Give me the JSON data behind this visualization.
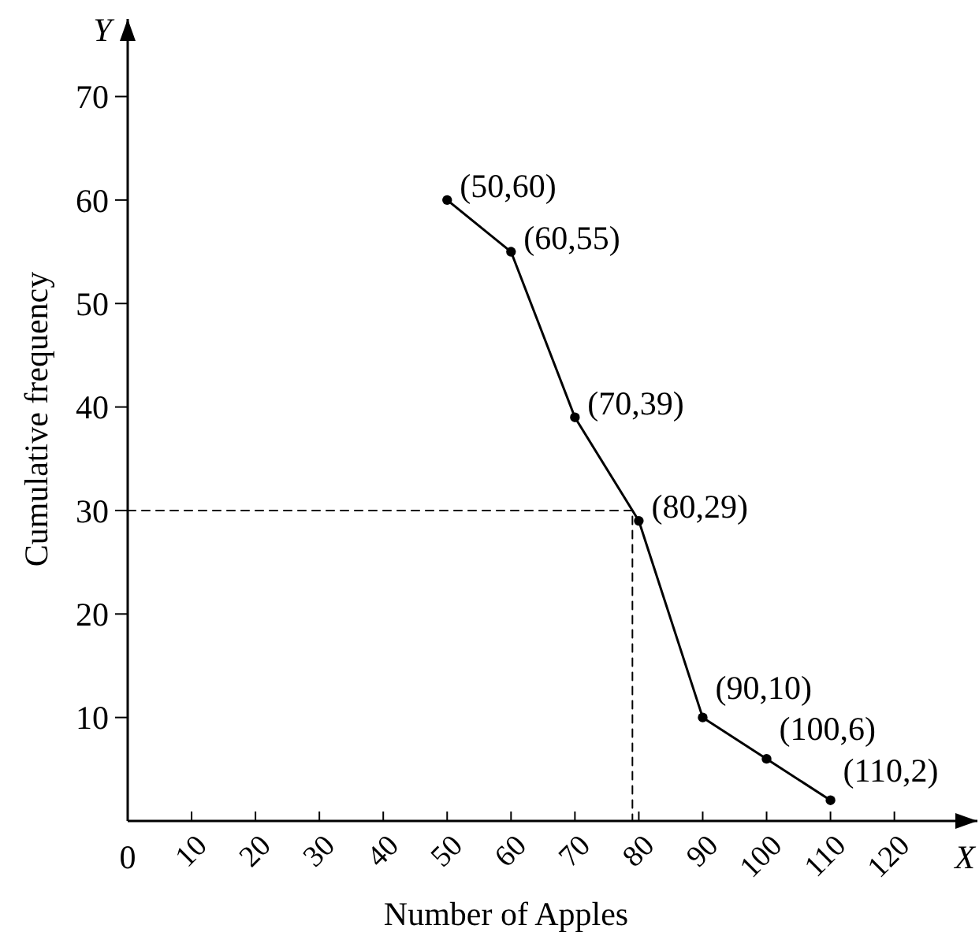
{
  "chart_data": {
    "type": "line",
    "xlabel": "Number of Apples",
    "ylabel": "Cumulative frequency",
    "annotations": [
      "X",
      "Y",
      "0",
      {
        "text": "(50,60)",
        "x": 50,
        "y": 60
      },
      {
        "text": "(60,55)",
        "x": 60,
        "y": 55
      },
      {
        "text": "(70,39)",
        "x": 70,
        "y": 39
      },
      {
        "text": "(80,29)",
        "x": 80,
        "y": 29
      },
      {
        "text": "(90,10)",
        "x": 90,
        "y": 10
      },
      {
        "text": "(100,6)",
        "x": 100,
        "y": 6
      },
      {
        "text": "(110,2)",
        "x": 110,
        "y": 2
      }
    ],
    "xlim": [
      0,
      133
    ],
    "ylim": [
      0,
      77.5
    ],
    "xticks": [
      10,
      20,
      30,
      40,
      50,
      60,
      70,
      80,
      90,
      100,
      110,
      120
    ],
    "yticks": [
      10,
      20,
      30,
      40,
      50,
      60,
      70
    ],
    "grid": false,
    "series": [
      {
        "color": "#000000",
        "x": [
          50,
          60,
          70,
          80,
          90,
          100,
          110
        ],
        "values": [
          60,
          55,
          39,
          29,
          10,
          6,
          2
        ],
        "marker": "circle",
        "line_style": "solid"
      },
      {
        "color": "#000000",
        "x": [
          0,
          79,
          79
        ],
        "values": [
          30,
          30,
          0
        ],
        "marker": "none",
        "line_style": "dashed"
      }
    ]
  }
}
